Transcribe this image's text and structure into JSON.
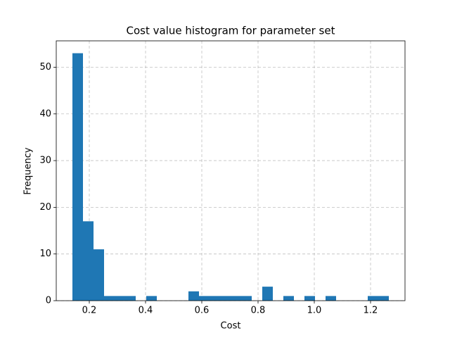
{
  "chart_data": {
    "type": "histogram",
    "title": "Cost value histogram for parameter set",
    "xlabel": "Cost",
    "ylabel": "Frequency",
    "bins": [
      0.14,
      0.1775,
      0.215,
      0.2525,
      0.29,
      0.3275,
      0.365,
      0.4025,
      0.44,
      0.4775,
      0.515,
      0.5525,
      0.59,
      0.6275,
      0.665,
      0.7025,
      0.74,
      0.7775,
      0.815,
      0.8525,
      0.89,
      0.9275,
      0.965,
      1.0025,
      1.04,
      1.0775,
      1.115,
      1.1525,
      1.19,
      1.2275,
      1.265
    ],
    "counts": [
      53,
      17,
      11,
      1,
      1,
      1,
      0,
      1,
      0,
      0,
      0,
      2,
      1,
      1,
      1,
      1,
      1,
      0,
      3,
      0,
      1,
      0,
      1,
      0,
      1,
      0,
      0,
      0,
      1,
      1
    ],
    "color": "#1f77b4",
    "xlim": [
      0.0825,
      1.3225
    ],
    "xticks": [
      0.2,
      0.4,
      0.6,
      0.8,
      {
        "value": 1,
        "label": "1.0"
      },
      1.2
    ],
    "ylim": [
      0,
      55.65
    ],
    "yticks": [
      0,
      10,
      20,
      30,
      40,
      50
    ],
    "grid": true
  }
}
